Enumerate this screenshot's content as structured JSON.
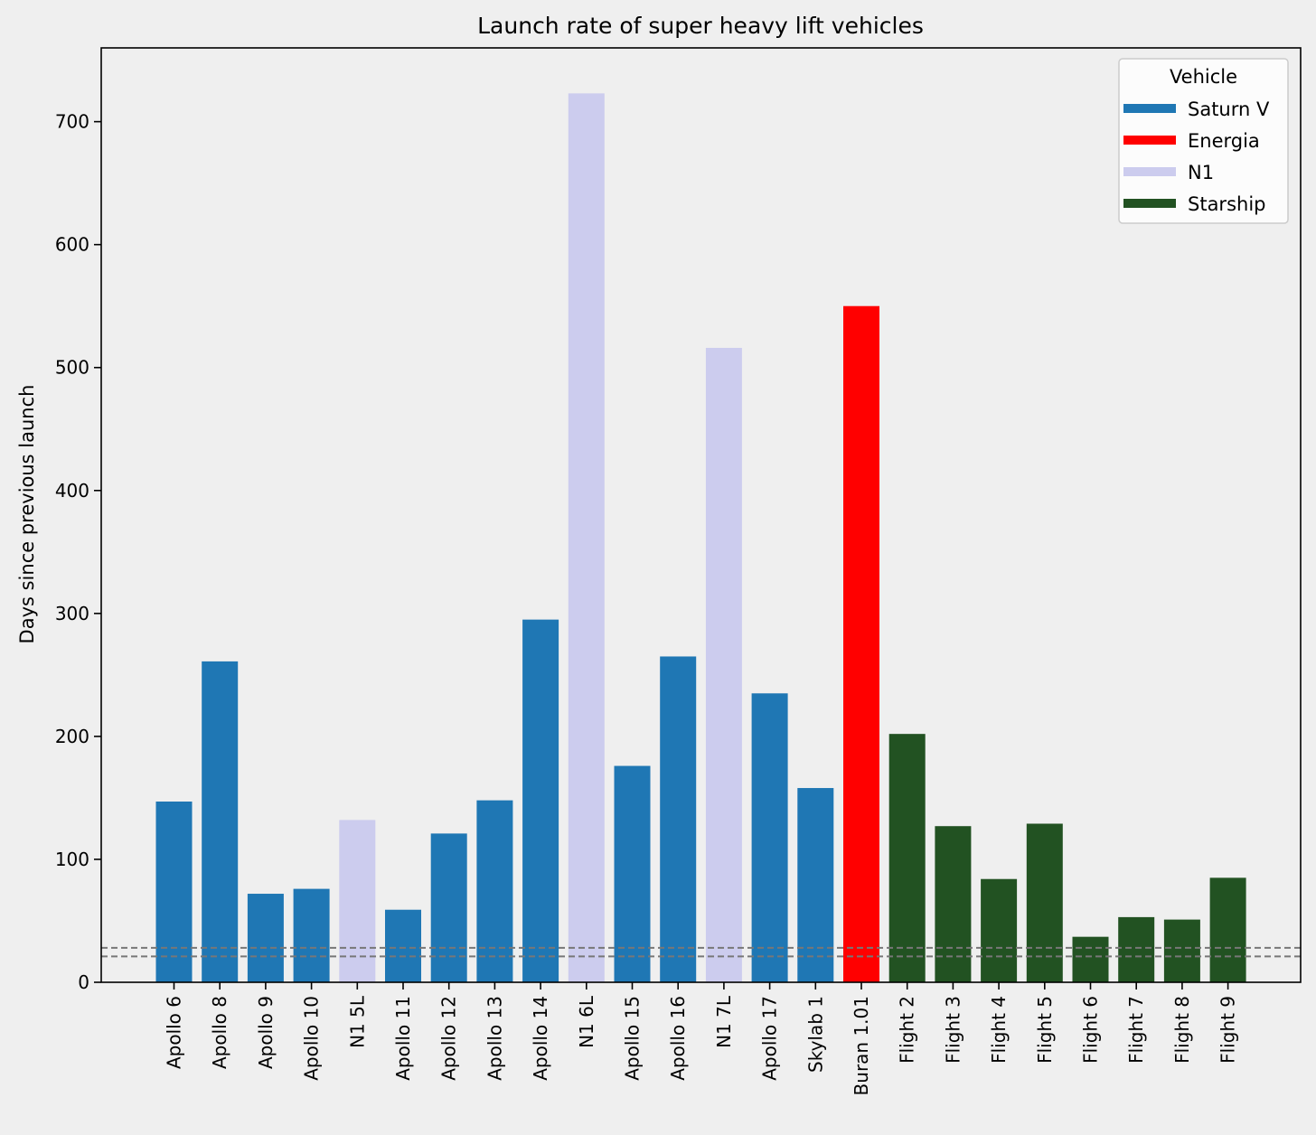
{
  "chart_data": {
    "type": "bar",
    "title": "Launch rate of super heavy lift vehicles",
    "xlabel": "",
    "ylabel": "Days since previous launch",
    "ylim": [
      0,
      760
    ],
    "yticks": [
      0,
      100,
      200,
      300,
      400,
      500,
      600,
      700
    ],
    "grid": false,
    "legend": {
      "title": "Vehicle",
      "placement": "top-right",
      "entries": [
        {
          "name": "Saturn V",
          "color": "#1f77b4"
        },
        {
          "name": "Energia",
          "color": "#ff0000"
        },
        {
          "name": "N1",
          "color": "#ccccee"
        },
        {
          "name": "Starship",
          "color": "#225222"
        }
      ]
    },
    "categories": [
      "Apollo 6",
      "Apollo 8",
      "Apollo 9",
      "Apollo 10",
      "N1 5L",
      "Apollo 11",
      "Apollo 12",
      "Apollo 13",
      "Apollo 14",
      "N1 6L",
      "Apollo 15",
      "Apollo 16",
      "N1 7L",
      "Apollo 17",
      "Skylab 1",
      "Buran 1.01",
      "Flight 2",
      "Flight 3",
      "Flight 4",
      "Flight 5",
      "Flight 6",
      "Flight 7",
      "Flight 8",
      "Flight 9"
    ],
    "values": [
      147,
      261,
      72,
      76,
      132,
      59,
      121,
      148,
      295,
      723,
      176,
      265,
      516,
      235,
      158,
      550,
      202,
      127,
      84,
      129,
      37,
      53,
      51,
      85
    ],
    "vehicle": [
      "Saturn V",
      "Saturn V",
      "Saturn V",
      "Saturn V",
      "N1",
      "Saturn V",
      "Saturn V",
      "Saturn V",
      "Saturn V",
      "N1",
      "Saturn V",
      "Saturn V",
      "N1",
      "Saturn V",
      "Saturn V",
      "Energia",
      "Starship",
      "Starship",
      "Starship",
      "Starship",
      "Starship",
      "Starship",
      "Starship",
      "Starship"
    ],
    "reference_lines": [
      {
        "y": 28,
        "style": "dashed",
        "color": "#777777"
      },
      {
        "y": 21,
        "style": "dashed",
        "color": "#777777"
      }
    ]
  }
}
